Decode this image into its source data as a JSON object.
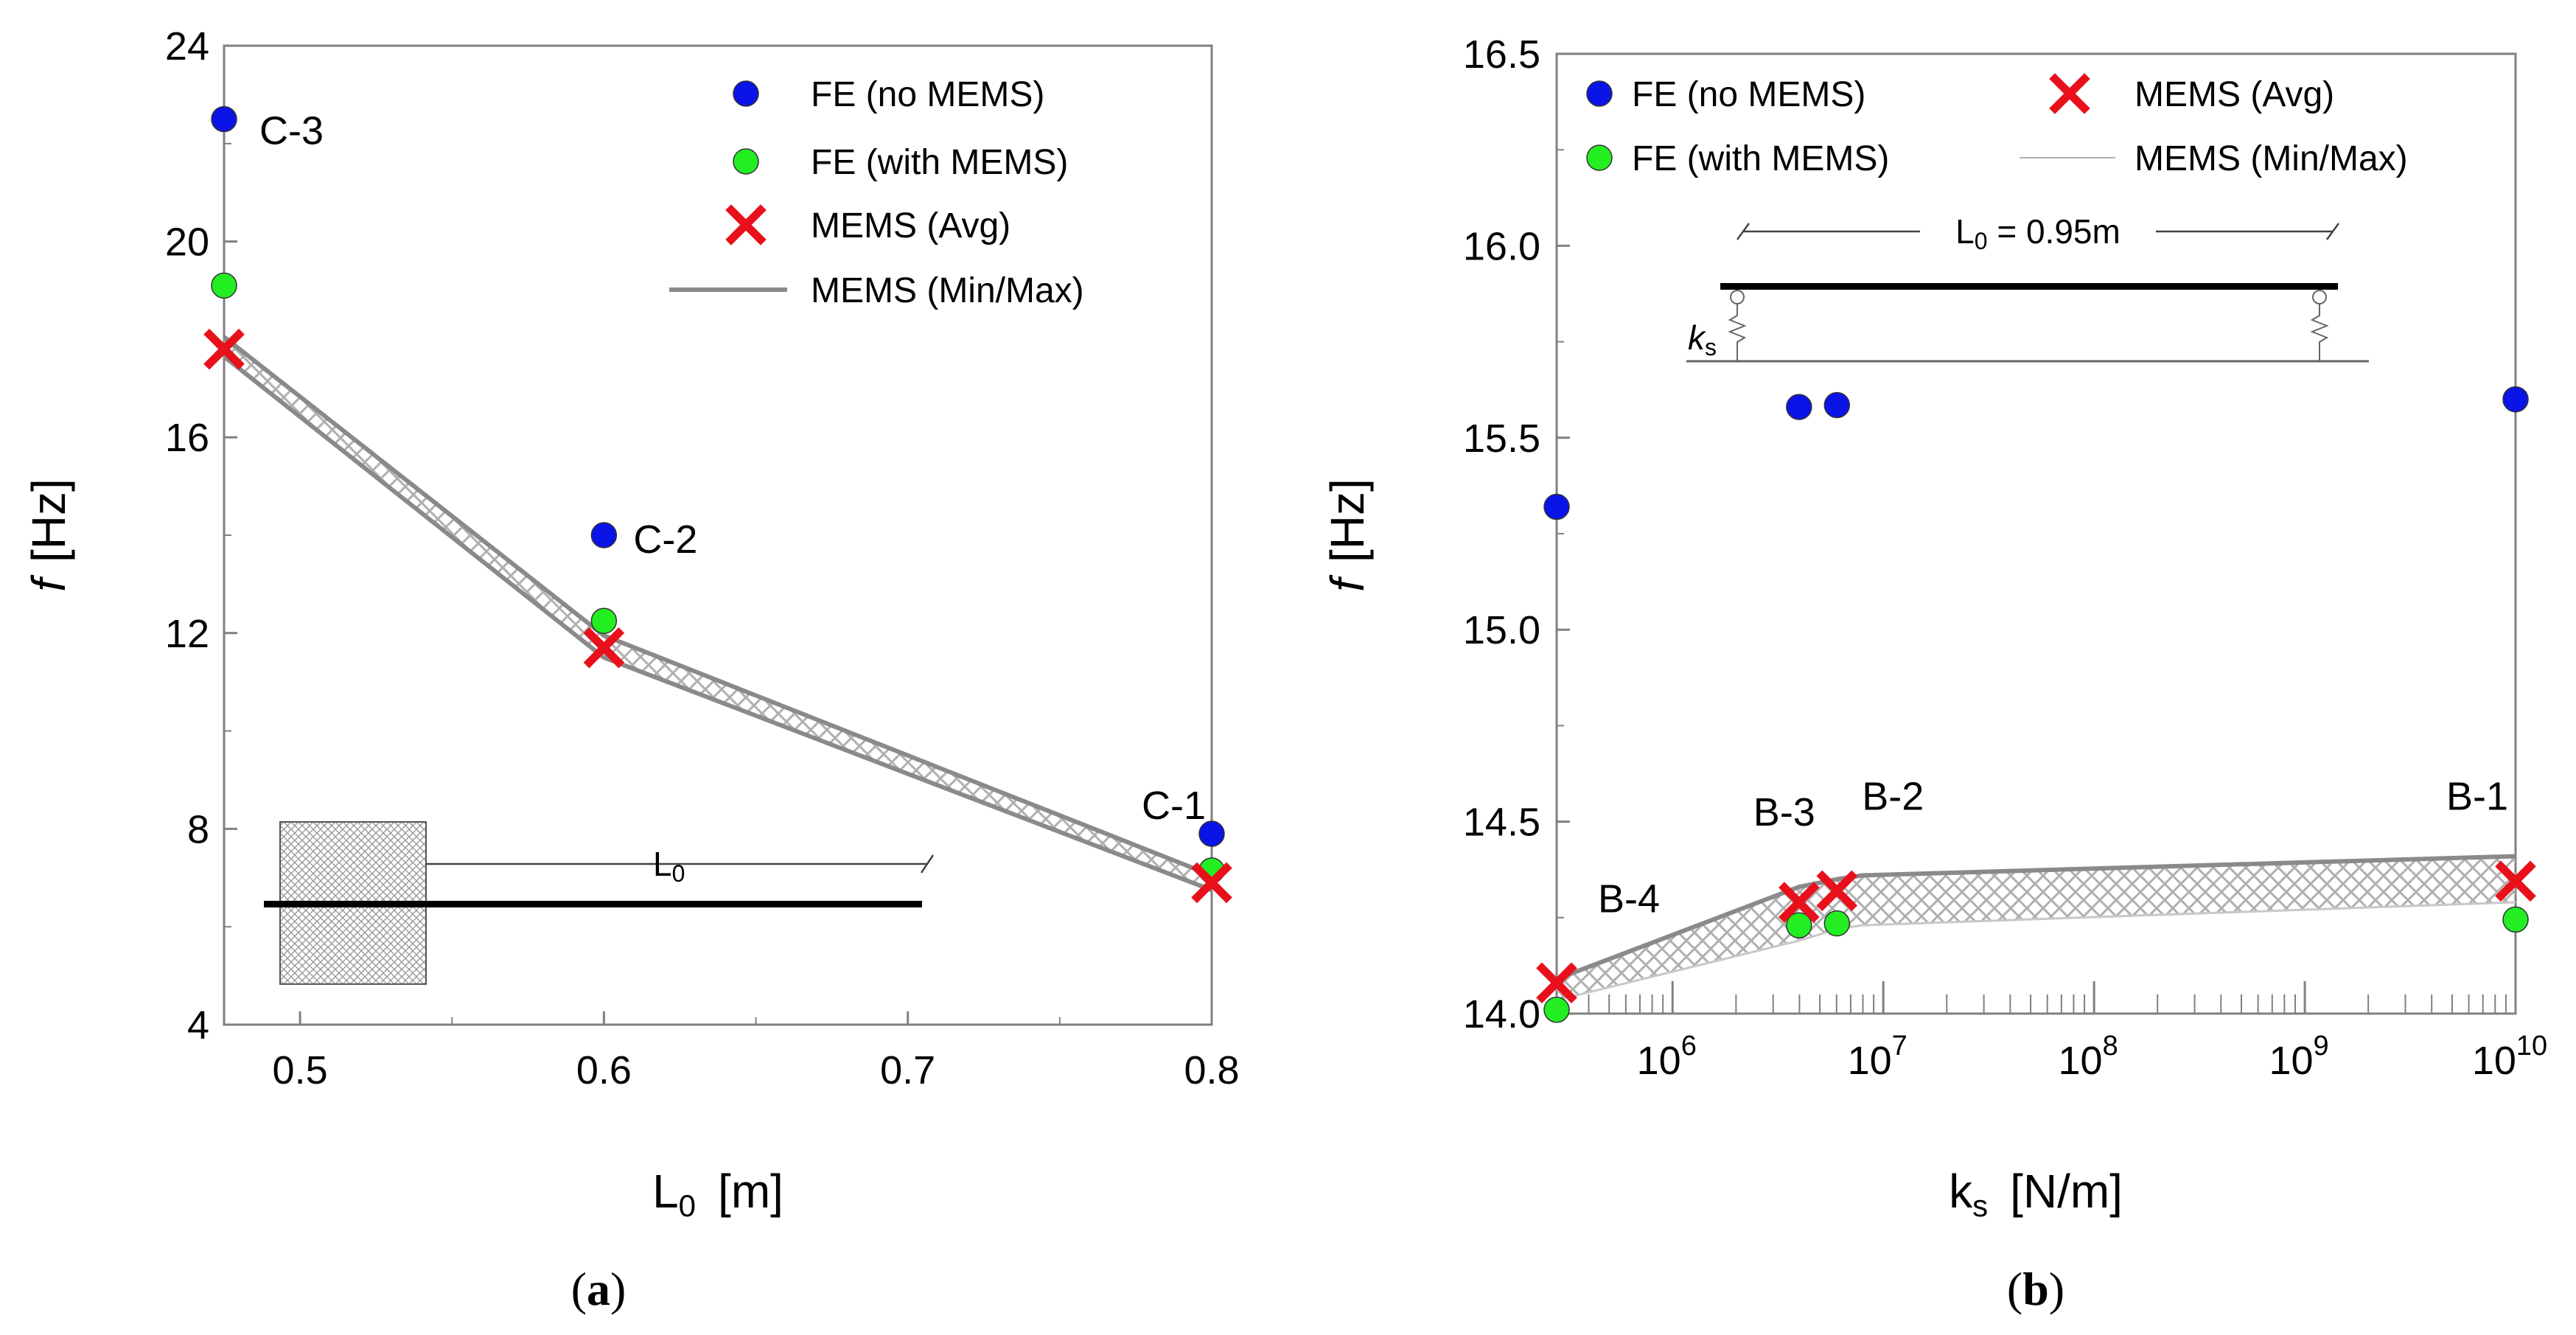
{
  "colors": {
    "fe_no_mems": "#0a14e6",
    "fe_with_mems": "#22ee22",
    "mems_avg": "#e8101a",
    "band": "#8a8a8a",
    "axis": "#808080"
  },
  "chart_data": [
    {
      "type": "scatter",
      "panel_label": "(a)",
      "panel_letter": "a",
      "xlabel_main": "L",
      "xlabel_sub": "0",
      "xlabel_unit": "[m]",
      "ylabel_sym": "f",
      "ylabel_unit": "[Hz]",
      "xlim": [
        0.475,
        0.8
      ],
      "ylim": [
        4,
        24
      ],
      "xticks": [
        0.5,
        0.6,
        0.7,
        0.8
      ],
      "xtick_labels": [
        "0.5",
        "0.6",
        "0.7",
        "0.8"
      ],
      "yticks": [
        4,
        8,
        12,
        16,
        20,
        24
      ],
      "ytick_labels": [
        "4",
        "8",
        "12",
        "16",
        "20",
        "24"
      ],
      "series": [
        {
          "name": "FE (no MEMS)",
          "x": [
            0.475,
            0.6,
            0.8
          ],
          "y": [
            22.5,
            14.0,
            7.9
          ]
        },
        {
          "name": "FE (with MEMS)",
          "x": [
            0.475,
            0.6,
            0.8
          ],
          "y": [
            19.1,
            12.25,
            7.15
          ]
        },
        {
          "name": "MEMS (Avg)",
          "x": [
            0.475,
            0.6,
            0.8
          ],
          "y": [
            17.8,
            11.7,
            6.9
          ]
        },
        {
          "name": "MEMS (Min/Max)",
          "x": [
            0.475,
            0.6,
            0.8
          ],
          "ymin": [
            17.65,
            11.5,
            6.75
          ],
          "ymax": [
            18.05,
            11.95,
            7.05
          ]
        }
      ],
      "annotations": [
        {
          "text": "C-3",
          "x": 0.475,
          "y": 22.5
        },
        {
          "text": "C-2",
          "x": 0.6,
          "y": 14.0
        },
        {
          "text": "C-1",
          "x": 0.8,
          "y": 7.9
        }
      ],
      "legend": [
        "FE (no MEMS)",
        "FE (with MEMS)",
        "MEMS (Avg)",
        "MEMS (Min/Max)"
      ],
      "legend_position": "top-right",
      "inset_label": "L",
      "inset_label_sub": "0"
    },
    {
      "type": "scatter",
      "panel_label": "(b)",
      "panel_letter": "b",
      "xscale": "log",
      "xlabel_main": "k",
      "xlabel_sub": "s",
      "xlabel_unit": "[N/m]",
      "ylabel_sym": "f",
      "ylabel_unit": "[Hz]",
      "xlim_log10": [
        5.45,
        10.0
      ],
      "ylim": [
        14.0,
        16.5
      ],
      "xticks_log10": [
        6,
        7,
        8,
        9,
        10
      ],
      "xtick_base": "10",
      "xtick_exponents": [
        "6",
        "7",
        "8",
        "9",
        "10"
      ],
      "yticks": [
        14.0,
        14.5,
        15.0,
        15.5,
        16.0,
        16.5
      ],
      "ytick_labels": [
        "14.0",
        "14.5",
        "15.0",
        "15.5",
        "16.0",
        "16.5"
      ],
      "series": [
        {
          "name": "FE (no MEMS)",
          "x_log10": [
            5.45,
            6.6,
            6.78,
            10.0
          ],
          "y": [
            15.32,
            15.58,
            15.585,
            15.6
          ]
        },
        {
          "name": "FE (with MEMS)",
          "x_log10": [
            5.45,
            6.6,
            6.78,
            10.0
          ],
          "y": [
            14.01,
            14.23,
            14.235,
            14.245
          ]
        },
        {
          "name": "MEMS (Avg)",
          "x_log10": [
            5.45,
            6.6,
            6.78,
            10.0
          ],
          "y": [
            14.08,
            14.29,
            14.32,
            14.345
          ]
        },
        {
          "name": "MEMS (Min/Max)",
          "x_log10": [
            5.45,
            6.6,
            6.78,
            6.9,
            10.0
          ],
          "ymin": [
            14.035,
            14.19,
            14.22,
            14.23,
            14.29
          ],
          "ymax": [
            14.09,
            14.33,
            14.35,
            14.36,
            14.41
          ]
        }
      ],
      "annotations": [
        {
          "text": "B-4",
          "x_log10": 5.45,
          "y": 14.08
        },
        {
          "text": "B-3",
          "x_log10": 6.6,
          "y": 14.29
        },
        {
          "text": "B-2",
          "x_log10": 6.78,
          "y": 14.32
        },
        {
          "text": "B-1",
          "x_log10": 10.0,
          "y": 14.345
        }
      ],
      "legend": [
        "FE (no MEMS)",
        "MEMS (Avg)",
        "FE (with MEMS)",
        "MEMS (Min/Max)"
      ],
      "legend_position": "top",
      "inset_label": "L",
      "inset_label_sub": "0",
      "inset_label_value": " = 0.95m",
      "inset_spring_label": "k",
      "inset_spring_sub": "s"
    }
  ]
}
